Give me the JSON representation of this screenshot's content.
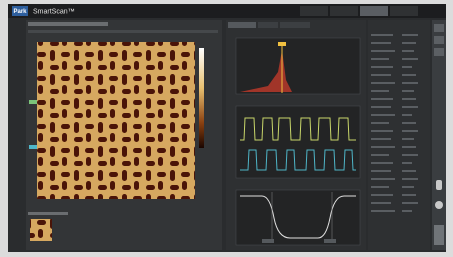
{
  "header": {
    "logo": "Park",
    "app_title": "SmartScan™"
  }
}
